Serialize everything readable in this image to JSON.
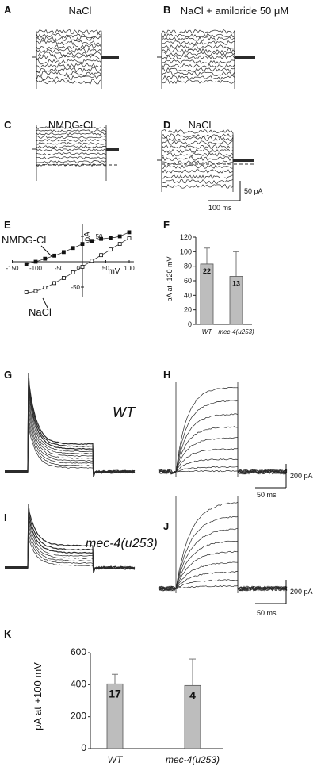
{
  "panels": {
    "A": {
      "label": "A",
      "title": "NaCl"
    },
    "B": {
      "label": "B",
      "title": "NaCl + amiloride 50 μM"
    },
    "C": {
      "label": "C",
      "title": "NMDG-Cl"
    },
    "D": {
      "label": "D",
      "title": "NaCl"
    },
    "scale_CD": {
      "current": "50 pA",
      "time": "100 ms"
    },
    "E": {
      "label": "E",
      "series_a": "NMDG-Cl",
      "series_b": "NaCl",
      "y_unit": "pA",
      "x_unit": "mV",
      "x_ticks": [
        "-150",
        "-100",
        "-50",
        "50",
        "100"
      ],
      "y_ticks": [
        "50",
        "-50"
      ],
      "zero": "0"
    },
    "F": {
      "label": "F",
      "ylabel": "pA at -120 mV"
    },
    "G": {
      "label": "G",
      "title": "WT"
    },
    "H": {
      "label": "H"
    },
    "scale_H": {
      "current": "200 pA",
      "time": "50 ms"
    },
    "I": {
      "label": "I",
      "title": "mec-4(u253)"
    },
    "J": {
      "label": "J"
    },
    "scale_J": {
      "current": "200 pA",
      "time": "50 ms"
    },
    "K": {
      "label": "K",
      "ylabel": "pA at +100 mV"
    }
  },
  "chart_data": [
    {
      "type": "line",
      "panel": "E",
      "xlabel": "mV",
      "ylabel": "pA",
      "xlim": [
        -150,
        120
      ],
      "ylim": [
        -70,
        75
      ],
      "series": [
        {
          "name": "NMDG-Cl",
          "marker": "filled-square",
          "x": [
            -120,
            -110,
            -100,
            -90,
            -80,
            -70,
            -60,
            -50,
            -40,
            -30,
            -20,
            -10,
            0,
            10,
            20,
            30,
            40,
            50,
            60,
            70,
            80,
            90,
            100
          ],
          "y": [
            -5,
            -2,
            0,
            3,
            6,
            9,
            12,
            15,
            19,
            23,
            27,
            31,
            35,
            38,
            41,
            43,
            45,
            46,
            47,
            48,
            50,
            54,
            58
          ]
        },
        {
          "name": "NaCl",
          "marker": "open-square",
          "x": [
            -120,
            -110,
            -100,
            -90,
            -80,
            -70,
            -60,
            -50,
            -40,
            -30,
            -20,
            -10,
            0,
            10,
            20,
            30,
            40,
            50,
            60,
            70,
            80,
            90,
            100
          ],
          "y": [
            -60,
            -60,
            -58,
            -55,
            -51,
            -47,
            -42,
            -37,
            -32,
            -27,
            -21,
            -16,
            -10,
            -4,
            2,
            7,
            13,
            18,
            24,
            30,
            35,
            41,
            46
          ]
        }
      ]
    },
    {
      "type": "bar",
      "panel": "F",
      "categories": [
        "WT",
        "mec-4(u253)"
      ],
      "values": [
        83,
        66
      ],
      "errors": [
        22,
        34
      ],
      "n_labels": [
        "22",
        "13"
      ],
      "ylabel": "pA at -120 mV",
      "ylim": [
        0,
        120
      ],
      "yticks": [
        0,
        20,
        40,
        60,
        80,
        100,
        120
      ]
    },
    {
      "type": "bar",
      "panel": "K",
      "categories": [
        "WT",
        "mec-4(u253)"
      ],
      "values": [
        405,
        395
      ],
      "errors": [
        60,
        165
      ],
      "n_labels": [
        "17",
        "4"
      ],
      "ylabel": "pA at +100 mV",
      "ylim": [
        0,
        600
      ],
      "yticks": [
        0,
        200,
        400,
        600
      ]
    }
  ],
  "colors": {
    "trace": "#2b2b2b",
    "bar_fill": "#bdbdbd",
    "axis": "#222222"
  }
}
